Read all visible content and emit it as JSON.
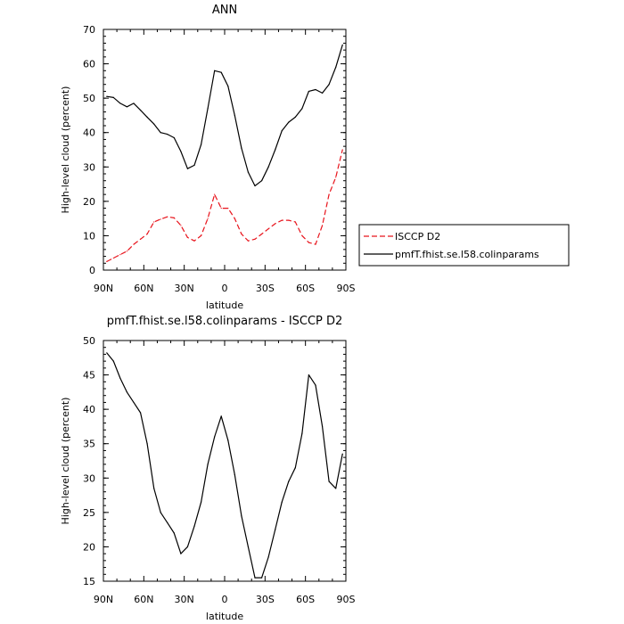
{
  "chart_data": [
    {
      "type": "line",
      "title": "ANN",
      "xlabel": "latitude",
      "ylabel": "High-level cloud (percent)",
      "xlim": [
        90,
        -90
      ],
      "ylim": [
        0,
        70
      ],
      "x_tick_labels": [
        "90N",
        "60N",
        "30N",
        "0",
        "30S",
        "60S",
        "90S"
      ],
      "x_tick_values": [
        90,
        60,
        30,
        0,
        -30,
        -60,
        -90
      ],
      "y_ticks": [
        0,
        10,
        20,
        30,
        40,
        50,
        60,
        70
      ],
      "legend": "outside-right",
      "series": [
        {
          "name": "ISCCP D2",
          "color": "#e8141c",
          "dash": "dashed",
          "x": [
            87.5,
            82.5,
            77.5,
            72.5,
            67.5,
            62.5,
            57.5,
            52.5,
            47.5,
            42.5,
            37.5,
            32.5,
            27.5,
            22.5,
            17.5,
            12.5,
            7.5,
            2.5,
            -2.5,
            -7.5,
            -12.5,
            -17.5,
            -22.5,
            -27.5,
            -32.5,
            -37.5,
            -42.5,
            -47.5,
            -52.5,
            -57.5,
            -62.5,
            -67.5,
            -72.5,
            -77.5,
            -82.5,
            -87.5
          ],
          "y": [
            2.5,
            3.5,
            4.5,
            5.5,
            7.5,
            9.0,
            10.5,
            14.0,
            14.8,
            15.5,
            15.2,
            13.0,
            9.5,
            8.5,
            10.0,
            15.0,
            22.0,
            18.0,
            18.0,
            15.0,
            10.5,
            8.5,
            9.0,
            10.5,
            12.0,
            13.5,
            14.5,
            14.5,
            14.0,
            10.0,
            8.0,
            7.5,
            13.0,
            22.0,
            27.0,
            35.0
          ]
        },
        {
          "name": "pmfT.fhist.se.l58.colinparams",
          "color": "#000000",
          "dash": "solid",
          "x": [
            87.5,
            82.5,
            77.5,
            72.5,
            67.5,
            62.5,
            57.5,
            52.5,
            47.5,
            42.5,
            37.5,
            32.5,
            27.5,
            22.5,
            17.5,
            12.5,
            7.5,
            2.5,
            -2.5,
            -7.5,
            -12.5,
            -17.5,
            -22.5,
            -27.5,
            -32.5,
            -37.5,
            -42.5,
            -47.5,
            -52.5,
            -57.5,
            -62.5,
            -67.5,
            -72.5,
            -77.5,
            -82.5,
            -87.5
          ],
          "y": [
            50.5,
            50.2,
            48.5,
            47.5,
            48.5,
            46.5,
            44.5,
            42.5,
            40.0,
            39.5,
            38.5,
            34.5,
            29.5,
            30.5,
            36.5,
            47.0,
            58.0,
            57.5,
            53.5,
            45.0,
            35.5,
            28.5,
            24.5,
            26.0,
            30.0,
            35.0,
            40.5,
            43.0,
            44.5,
            47.0,
            52.0,
            52.5,
            51.5,
            54.0,
            59.0,
            65.5
          ]
        }
      ]
    },
    {
      "type": "line",
      "title": "pmfT.fhist.se.l58.colinparams - ISCCP D2",
      "xlabel": "latitude",
      "ylabel": "High-level cloud (percent)",
      "xlim": [
        90,
        -90
      ],
      "ylim": [
        15,
        50
      ],
      "x_tick_labels": [
        "90N",
        "60N",
        "30N",
        "0",
        "30S",
        "60S",
        "90S"
      ],
      "x_tick_values": [
        90,
        60,
        30,
        0,
        -30,
        -60,
        -90
      ],
      "y_ticks": [
        15,
        20,
        25,
        30,
        35,
        40,
        45,
        50
      ],
      "series": [
        {
          "color": "#000000",
          "dash": "solid",
          "x": [
            87.5,
            82.5,
            77.5,
            72.5,
            67.5,
            62.5,
            57.5,
            52.5,
            47.5,
            42.5,
            37.5,
            32.5,
            27.5,
            22.5,
            17.5,
            12.5,
            7.5,
            2.5,
            -2.5,
            -7.5,
            -12.5,
            -17.5,
            -22.5,
            -27.5,
            -32.5,
            -37.5,
            -42.5,
            -47.5,
            -52.5,
            -57.5,
            -62.5,
            -67.5,
            -72.5,
            -77.5,
            -82.5,
            -87.5
          ],
          "y": [
            48.2,
            47.0,
            44.5,
            42.5,
            41.0,
            39.5,
            35.0,
            28.5,
            25.0,
            23.5,
            22.0,
            19.0,
            20.0,
            23.0,
            26.5,
            32.0,
            36.0,
            39.0,
            35.5,
            30.5,
            24.5,
            20.0,
            15.5,
            15.5,
            18.5,
            22.5,
            26.5,
            29.5,
            31.5,
            36.5,
            45.0,
            43.5,
            37.5,
            29.5,
            28.5,
            33.5
          ]
        }
      ]
    }
  ]
}
